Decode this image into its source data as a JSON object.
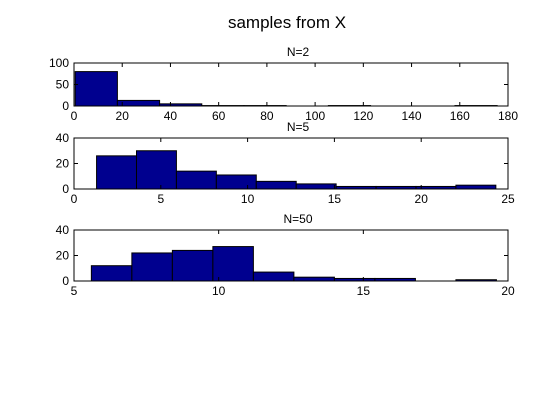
{
  "suptitle": "samples from X",
  "colors": {
    "bar_fill": "#00008f",
    "bar_edge": "#000000",
    "axes": "#000000"
  },
  "chart_data": [
    {
      "type": "bar",
      "title": "N=2",
      "xlim": [
        0,
        180
      ],
      "ylim": [
        0,
        100
      ],
      "xticks": [
        0,
        20,
        40,
        60,
        80,
        100,
        120,
        140,
        160,
        180
      ],
      "yticks": [
        0,
        50,
        100
      ],
      "grid": false,
      "bins": [
        {
          "x0": 0.5,
          "x1": 18.0,
          "y": 80
        },
        {
          "x0": 18.0,
          "x1": 35.5,
          "y": 13
        },
        {
          "x0": 35.5,
          "x1": 53.0,
          "y": 5
        },
        {
          "x0": 53.0,
          "x1": 70.5,
          "y": 1
        },
        {
          "x0": 70.5,
          "x1": 88.0,
          "y": 1
        },
        {
          "x0": 88.0,
          "x1": 105.5,
          "y": 0
        },
        {
          "x0": 105.5,
          "x1": 123.0,
          "y": 1
        },
        {
          "x0": 123.0,
          "x1": 140.5,
          "y": 0
        },
        {
          "x0": 140.5,
          "x1": 158.0,
          "y": 0
        },
        {
          "x0": 158.0,
          "x1": 175.5,
          "y": 1
        }
      ]
    },
    {
      "type": "bar",
      "title": "N=5",
      "xlim": [
        0,
        25
      ],
      "ylim": [
        0,
        40
      ],
      "xticks": [
        0,
        5,
        10,
        15,
        20,
        25
      ],
      "yticks": [
        0,
        20,
        40
      ],
      "grid": false,
      "bins": [
        {
          "x0": 1.3,
          "x1": 3.6,
          "y": 26
        },
        {
          "x0": 3.6,
          "x1": 5.9,
          "y": 30
        },
        {
          "x0": 5.9,
          "x1": 8.2,
          "y": 14
        },
        {
          "x0": 8.2,
          "x1": 10.5,
          "y": 11
        },
        {
          "x0": 10.5,
          "x1": 12.8,
          "y": 6
        },
        {
          "x0": 12.8,
          "x1": 15.1,
          "y": 4
        },
        {
          "x0": 15.1,
          "x1": 17.4,
          "y": 2
        },
        {
          "x0": 17.4,
          "x1": 19.7,
          "y": 2
        },
        {
          "x0": 19.7,
          "x1": 22.0,
          "y": 2
        },
        {
          "x0": 22.0,
          "x1": 24.3,
          "y": 3
        }
      ]
    },
    {
      "type": "bar",
      "title": "N=50",
      "xlim": [
        5,
        20
      ],
      "ylim": [
        0,
        40
      ],
      "xticks": [
        5,
        10,
        15,
        20
      ],
      "yticks": [
        0,
        20,
        40
      ],
      "grid": false,
      "bins": [
        {
          "x0": 5.6,
          "x1": 7.0,
          "y": 12
        },
        {
          "x0": 7.0,
          "x1": 8.4,
          "y": 22
        },
        {
          "x0": 8.4,
          "x1": 9.8,
          "y": 24
        },
        {
          "x0": 9.8,
          "x1": 11.2,
          "y": 27
        },
        {
          "x0": 11.2,
          "x1": 12.6,
          "y": 7
        },
        {
          "x0": 12.6,
          "x1": 14.0,
          "y": 3
        },
        {
          "x0": 14.0,
          "x1": 15.4,
          "y": 2
        },
        {
          "x0": 15.4,
          "x1": 16.8,
          "y": 2
        },
        {
          "x0": 16.8,
          "x1": 18.2,
          "y": 0
        },
        {
          "x0": 18.2,
          "x1": 19.6,
          "y": 1
        }
      ]
    }
  ]
}
